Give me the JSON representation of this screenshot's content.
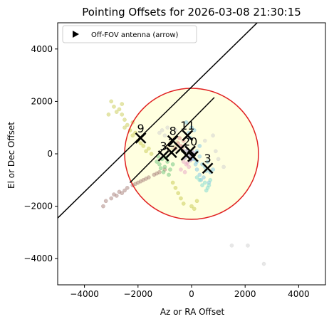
{
  "chart_data": {
    "type": "scatter",
    "title": "Pointing Offsets for 2026-03-08 21:30:15",
    "xlabel": "Az or RA Offset",
    "ylabel": "El or Dec Offset",
    "xlim": [
      -5000,
      5000
    ],
    "ylim": [
      -5000,
      5000
    ],
    "xticks": [
      -4000,
      -2000,
      0,
      2000,
      4000
    ],
    "yticks": [
      -4000,
      -2000,
      0,
      2000,
      4000
    ],
    "xtick_labels": [
      "−4000",
      "−2000",
      "0",
      "2000",
      "4000"
    ],
    "ytick_labels": [
      "−4000",
      "−2000",
      "0",
      "2000",
      "4000"
    ],
    "grid": false,
    "legend": {
      "placement": "top-left",
      "entries": [
        {
          "label": "Off-FOV antenna (arrow)",
          "marker": "right-triangle",
          "color": "#000000"
        }
      ]
    },
    "fov_circle": {
      "center": [
        0,
        0
      ],
      "radius": 2500,
      "edge_color": "#e02020",
      "fill_color": "#ffffe0"
    },
    "lines": [
      {
        "name": "",
        "from": [
          -5000,
          -2450
        ],
        "to": [
          2450,
          5000
        ],
        "color": "#000000"
      },
      {
        "name": "",
        "from": [
          -2300,
          -1100
        ],
        "to": [
          850,
          2150
        ],
        "color": "#000000"
      }
    ],
    "antennas": [
      {
        "label": "9",
        "x": -1900,
        "y": 600
      },
      {
        "label": "8",
        "x": -700,
        "y": 500
      },
      {
        "label": "11",
        "x": -150,
        "y": 700
      },
      {
        "label": "3",
        "x": -1050,
        "y": -80
      },
      {
        "label": "2",
        "x": -750,
        "y": 50
      },
      {
        "label": "",
        "x": -400,
        "y": 200
      },
      {
        "label": "20",
        "x": -50,
        "y": 100
      },
      {
        "label": "",
        "x": -200,
        "y": -50
      },
      {
        "label": "",
        "x": 50,
        "y": -100
      },
      {
        "label": "3",
        "x": 600,
        "y": -550
      }
    ],
    "scatter_groups": [
      {
        "color": "#c9cc55",
        "points": [
          [
            -3000,
            2000
          ],
          [
            -2900,
            1800
          ],
          [
            -2700,
            1700
          ],
          [
            -2600,
            1500
          ],
          [
            -2500,
            1300
          ],
          [
            -2400,
            1100
          ],
          [
            -2300,
            900
          ],
          [
            -2200,
            700
          ],
          [
            -2000,
            500
          ],
          [
            -1800,
            300
          ],
          [
            -1700,
            100
          ],
          [
            -2800,
            1600
          ],
          [
            -2500,
            1000
          ],
          [
            -2100,
            800
          ],
          [
            -1900,
            400
          ],
          [
            -1600,
            200
          ],
          [
            -1500,
            0
          ],
          [
            -2200,
            1200
          ],
          [
            -2600,
            1900
          ],
          [
            -3100,
            1500
          ]
        ]
      },
      {
        "color": "#a87f7a",
        "points": [
          [
            -3200,
            -1800
          ],
          [
            -3000,
            -1700
          ],
          [
            -2800,
            -1600
          ],
          [
            -2600,
            -1500
          ],
          [
            -2400,
            -1300
          ],
          [
            -2200,
            -1200
          ],
          [
            -2000,
            -1100
          ],
          [
            -1800,
            -1000
          ],
          [
            -1600,
            -900
          ],
          [
            -1400,
            -800
          ],
          [
            -1200,
            -700
          ],
          [
            -1000,
            -600
          ],
          [
            -2900,
            -1550
          ],
          [
            -2500,
            -1400
          ],
          [
            -2100,
            -1150
          ],
          [
            -1700,
            -950
          ],
          [
            -1300,
            -750
          ],
          [
            -3300,
            -2000
          ],
          [
            -2700,
            -1450
          ],
          [
            -1900,
            -1050
          ]
        ]
      },
      {
        "color": "#6cc47c",
        "points": [
          [
            -1300,
            -300
          ],
          [
            -1200,
            -400
          ],
          [
            -1100,
            -200
          ],
          [
            -1000,
            -500
          ],
          [
            -900,
            -300
          ],
          [
            -800,
            -600
          ],
          [
            -1250,
            -100
          ],
          [
            -950,
            -150
          ],
          [
            -1150,
            -550
          ],
          [
            -700,
            -400
          ],
          [
            -1050,
            -700
          ],
          [
            -850,
            -800
          ]
        ]
      },
      {
        "color": "#e7d7a0",
        "points": [
          [
            -900,
            300
          ],
          [
            -800,
            400
          ],
          [
            -700,
            200
          ],
          [
            -600,
            300
          ],
          [
            -850,
            150
          ],
          [
            -750,
            500
          ],
          [
            -650,
            600
          ],
          [
            -550,
            450
          ]
        ]
      },
      {
        "color": "#d98a8a",
        "points": [
          [
            -500,
            400
          ],
          [
            -400,
            300
          ],
          [
            -300,
            500
          ],
          [
            -600,
            200
          ],
          [
            -450,
            600
          ],
          [
            -350,
            250
          ]
        ]
      },
      {
        "color": "#9a8bc9",
        "points": [
          [
            -300,
            100
          ],
          [
            -200,
            0
          ],
          [
            -100,
            -100
          ],
          [
            0,
            -200
          ],
          [
            -250,
            -150
          ],
          [
            -150,
            150
          ],
          [
            50,
            50
          ],
          [
            -50,
            -250
          ]
        ]
      },
      {
        "color": "#7ec3e6",
        "points": [
          [
            100,
            -200
          ],
          [
            200,
            -300
          ],
          [
            300,
            -100
          ],
          [
            400,
            -400
          ],
          [
            500,
            -500
          ],
          [
            200,
            -600
          ],
          [
            600,
            -300
          ],
          [
            700,
            -700
          ],
          [
            300,
            -800
          ],
          [
            450,
            -900
          ],
          [
            150,
            -400
          ],
          [
            550,
            -650
          ],
          [
            800,
            -600
          ],
          [
            350,
            -1000
          ],
          [
            650,
            -1100
          ],
          [
            -100,
            800
          ],
          [
            0,
            1000
          ],
          [
            -200,
            1200
          ],
          [
            100,
            900
          ],
          [
            300,
            300
          ],
          [
            200,
            100
          ],
          [
            -50,
            600
          ]
        ]
      },
      {
        "color": "#7ddad0",
        "points": [
          [
            400,
            -1200
          ],
          [
            500,
            -1100
          ],
          [
            600,
            -1300
          ],
          [
            300,
            -1000
          ],
          [
            700,
            -1000
          ],
          [
            200,
            -900
          ],
          [
            650,
            -1200
          ],
          [
            550,
            -1400
          ]
        ]
      },
      {
        "color": "#e8a3c6",
        "points": [
          [
            -200,
            -400
          ],
          [
            -300,
            -300
          ],
          [
            -100,
            -500
          ],
          [
            -400,
            -600
          ],
          [
            -250,
            -700
          ],
          [
            -150,
            -350
          ]
        ]
      },
      {
        "color": "#c7c94e",
        "points": [
          [
            -500,
            -1500
          ],
          [
            -400,
            -1700
          ],
          [
            -600,
            -1300
          ],
          [
            -300,
            -1900
          ],
          [
            0,
            -2000
          ],
          [
            200,
            -1800
          ],
          [
            -700,
            -1100
          ],
          [
            100,
            -2100
          ]
        ]
      },
      {
        "color": "#cfcfcf",
        "points": [
          [
            -1200,
            800
          ],
          [
            -1100,
            900
          ],
          [
            -1000,
            700
          ],
          [
            -900,
            1000
          ],
          [
            500,
            500
          ],
          [
            800,
            700
          ],
          [
            1500,
            -3500
          ],
          [
            2100,
            -3500
          ],
          [
            2700,
            -4200
          ],
          [
            1000,
            -200
          ],
          [
            900,
            100
          ],
          [
            1200,
            -500
          ],
          [
            -600,
            900
          ]
        ]
      }
    ]
  }
}
